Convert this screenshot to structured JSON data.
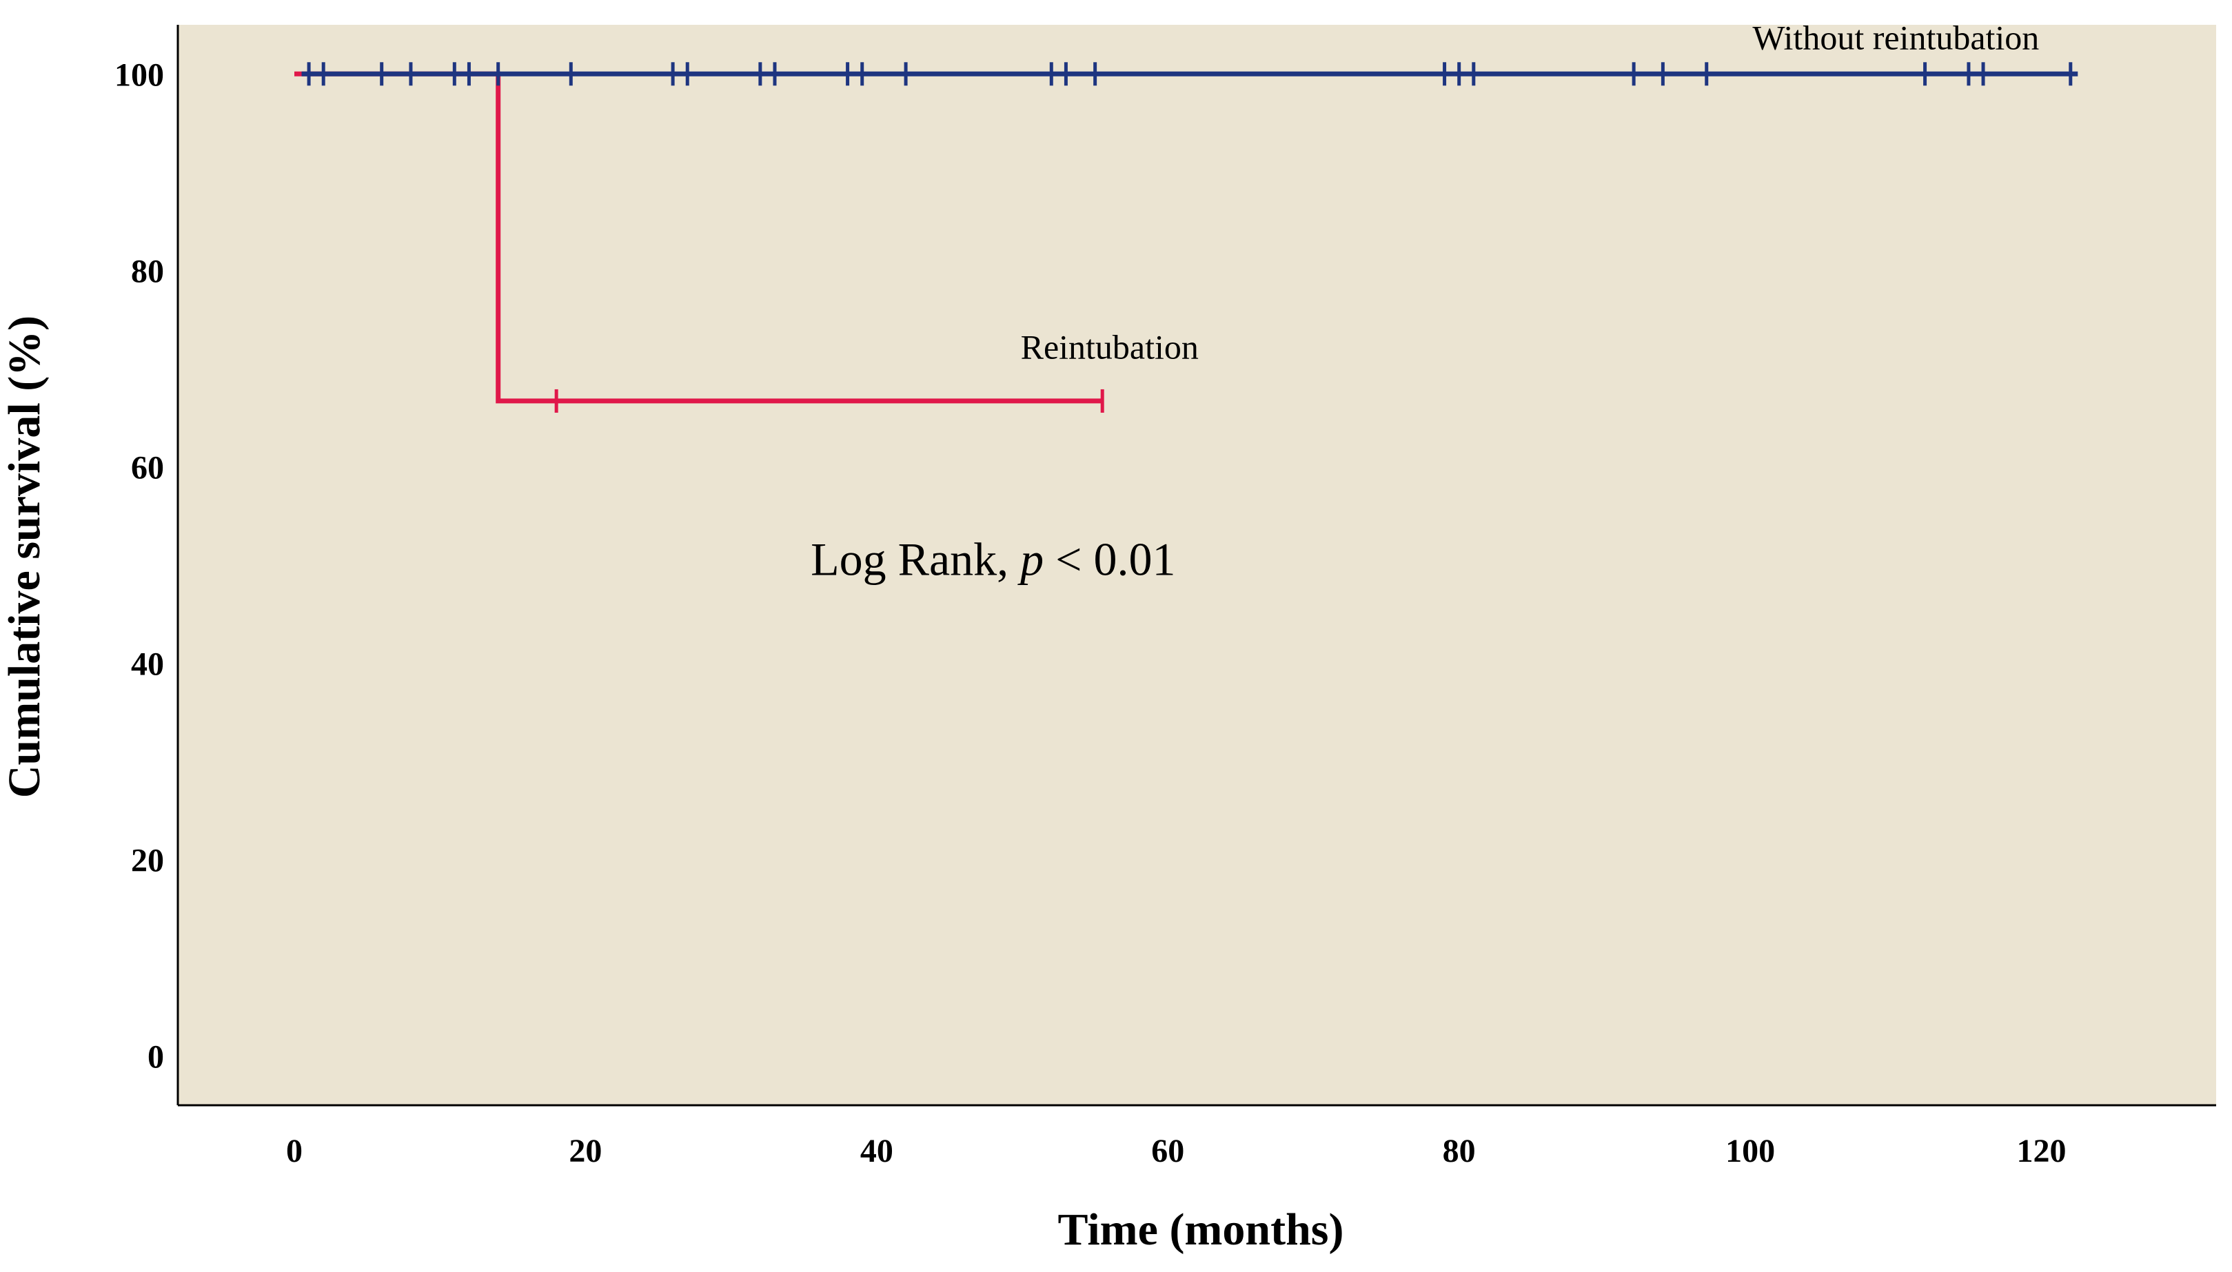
{
  "chart_data": {
    "type": "line",
    "subtype": "kaplan-meier",
    "title": "",
    "xlabel": "Time (months)",
    "ylabel": "Cumulative survival (%)",
    "xlim": [
      -8,
      132
    ],
    "ylim": [
      -5,
      105
    ],
    "xticks": [
      0,
      20,
      40,
      60,
      80,
      100,
      120
    ],
    "yticks": [
      0,
      20,
      40,
      60,
      80,
      100
    ],
    "grid": false,
    "background_color": "#ebe4d2",
    "annotation": {
      "prefix": "Log Rank, ",
      "italic": "p",
      "suffix": " < 0.01",
      "x": 48,
      "y": 49
    },
    "series": [
      {
        "name": "Reintubation",
        "color": "#e0184a",
        "label_at": [
          56,
          71
        ],
        "steps": [
          [
            0,
            100
          ],
          [
            14,
            100
          ],
          [
            14,
            66.7
          ],
          [
            55.5,
            66.7
          ]
        ],
        "censored": [
          [
            18,
            66.7
          ],
          [
            55.5,
            66.7
          ]
        ]
      },
      {
        "name": "Without reintubation",
        "color": "#1e3580",
        "label_at": [
          110,
          102.5
        ],
        "steps": [
          [
            0.5,
            100
          ],
          [
            122.5,
            100
          ]
        ],
        "censored": [
          [
            1,
            100
          ],
          [
            2,
            100
          ],
          [
            6,
            100
          ],
          [
            8,
            100
          ],
          [
            11,
            100
          ],
          [
            12,
            100
          ],
          [
            14,
            100
          ],
          [
            19,
            100
          ],
          [
            26,
            100
          ],
          [
            27,
            100
          ],
          [
            32,
            100
          ],
          [
            33,
            100
          ],
          [
            38,
            100
          ],
          [
            39,
            100
          ],
          [
            42,
            100
          ],
          [
            52,
            100
          ],
          [
            53,
            100
          ],
          [
            55,
            100
          ],
          [
            79,
            100
          ],
          [
            80,
            100
          ],
          [
            81,
            100
          ],
          [
            92,
            100
          ],
          [
            94,
            100
          ],
          [
            97,
            100
          ],
          [
            112,
            100
          ],
          [
            115,
            100
          ],
          [
            116,
            100
          ],
          [
            122,
            100
          ]
        ]
      }
    ]
  }
}
